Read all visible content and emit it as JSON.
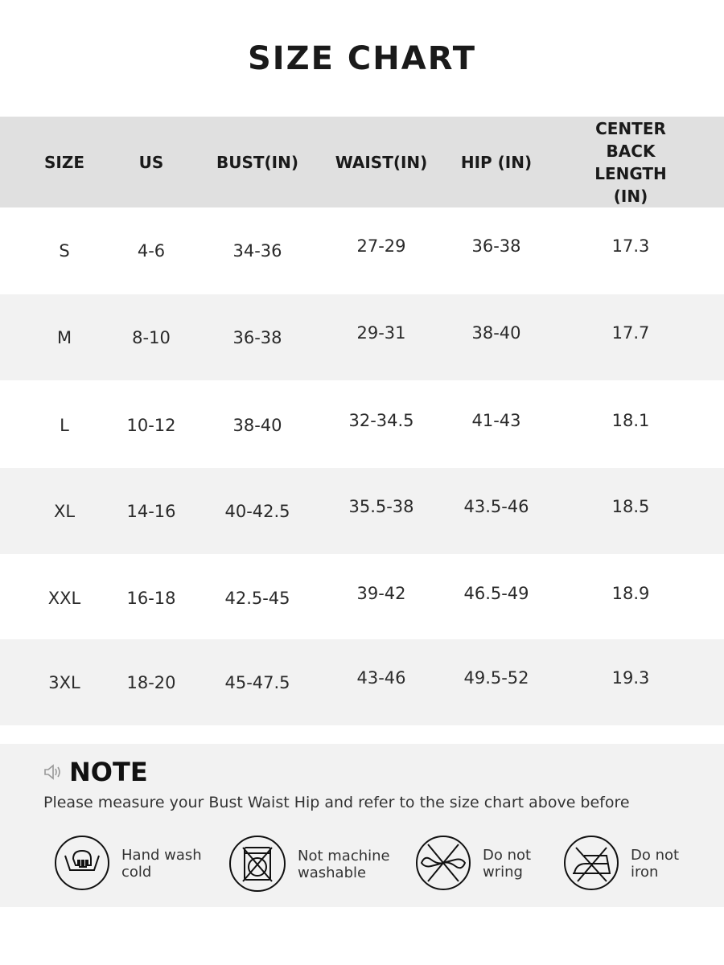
{
  "title": "SIZE CHART",
  "columns": [
    "SIZE",
    "US",
    "BUST(IN)",
    "WAIST(IN)",
    "HIP (IN)",
    "CENTER BACK\nLENGTH (IN)"
  ],
  "rows": [
    [
      "S",
      "4-6",
      "34-36",
      "27-29",
      "36-38",
      "17.3"
    ],
    [
      "M",
      "8-10",
      "36-38",
      "29-31",
      "38-40",
      "17.7"
    ],
    [
      "L",
      "10-12",
      "38-40",
      "32-34.5",
      "41-43",
      "18.1"
    ],
    [
      "XL",
      "14-16",
      "40-42.5",
      "35.5-38",
      "43.5-46",
      "18.5"
    ],
    [
      "XXL",
      "16-18",
      "42.5-45",
      "39-42",
      "46.5-49",
      "18.9"
    ],
    [
      "3XL",
      "18-20",
      "45-47.5",
      "43-46",
      "49.5-52",
      "19.3"
    ]
  ],
  "note": {
    "icon": "speaker-icon",
    "title": "NOTE",
    "text": "Please measure your Bust Waist Hip and refer to the size chart above before"
  },
  "care": [
    {
      "icon": "hand-wash-icon",
      "label": "Hand wash\ncold"
    },
    {
      "icon": "no-machine-wash-icon",
      "label": "Not machine\nwashable"
    },
    {
      "icon": "do-not-wring-icon",
      "label": "Do not\nwring"
    },
    {
      "icon": "do-not-iron-icon",
      "label": "Do not\niron"
    }
  ],
  "colors": {
    "header_bg": "#e0e0e0",
    "alt_row_bg": "#f2f2f2",
    "text": "#222222"
  }
}
